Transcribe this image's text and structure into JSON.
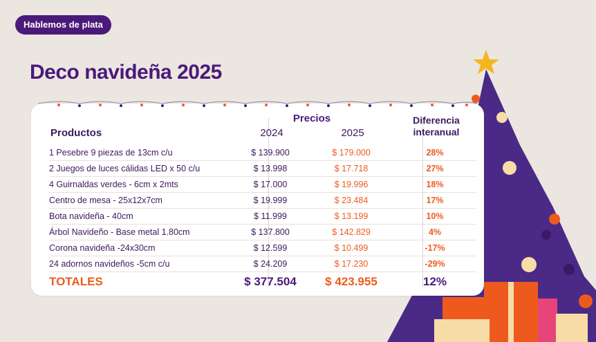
{
  "badge": "Hablemos de plata",
  "title": "Deco navideña 2025",
  "table": {
    "headers": {
      "productos": "Productos",
      "precios": "Precios",
      "year_a": "2024",
      "year_b": "2025",
      "diferencia_line1": "Diferencia",
      "diferencia_line2": "interanual"
    },
    "rows": [
      {
        "producto": "1 Pesebre 9 piezas de 13cm c/u",
        "p2024": "$ 139.900",
        "p2025": "$ 179.000",
        "diff": "28%"
      },
      {
        "producto": "2 Juegos de luces cálidas LED x 50 c/u",
        "p2024": "$ 13.998",
        "p2025": "$ 17.718",
        "diff": "27%"
      },
      {
        "producto": "4 Guirnaldas verdes - 6cm x 2mts",
        "p2024": "$ 17.000",
        "p2025": "$ 19.996",
        "diff": "18%"
      },
      {
        "producto": "Centro de mesa - 25x12x7cm",
        "p2024": "$ 19.999",
        "p2025": "$ 23.484",
        "diff": "17%"
      },
      {
        "producto": "Bota navideña - 40cm",
        "p2024": "$ 11.999",
        "p2025": "$ 13.199",
        "diff": "10%"
      },
      {
        "producto": "Árbol Navideño - Base metal 1.80cm",
        "p2024": "$ 137.800",
        "p2025": "$ 142.829",
        "diff": "4%"
      },
      {
        "producto": "Corona navideña -24x30cm",
        "p2024": "$ 12.599",
        "p2025": "$ 10.499",
        "diff": "-17%"
      },
      {
        "producto": "24 adornos navideños -5cm c/u",
        "p2024": "$ 24.209",
        "p2025": "$ 17.230",
        "diff": "-29%"
      }
    ],
    "totals": {
      "label": "TOTALES",
      "p2024": "$ 377.504",
      "p2025": "$ 423.955",
      "diff": "12%"
    }
  },
  "colors": {
    "purple": "#4a1a7a",
    "orange": "#ee5a1e",
    "background": "#ece6e1"
  }
}
